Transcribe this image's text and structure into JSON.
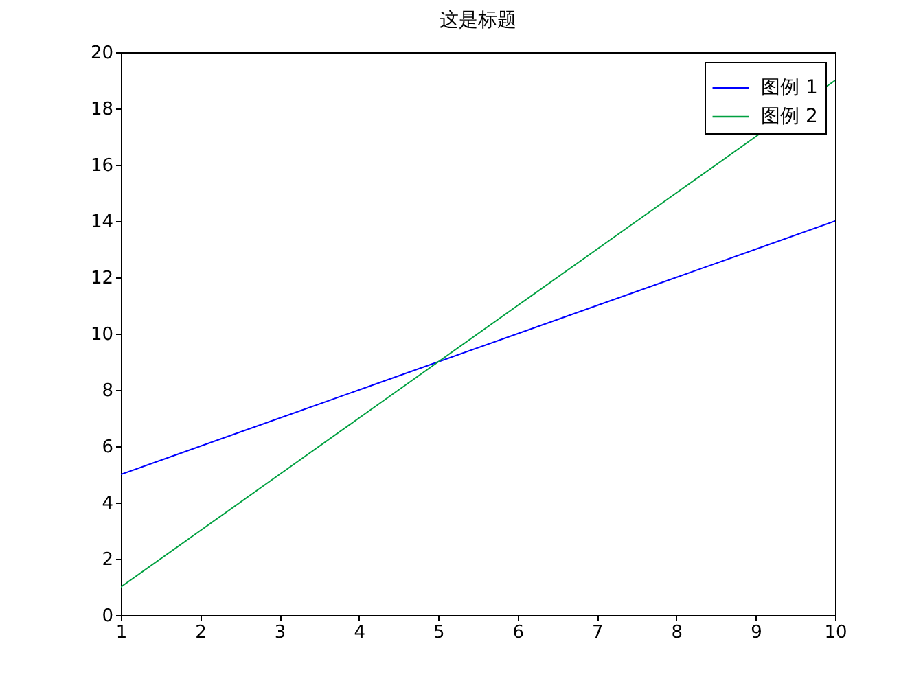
{
  "chart_data": {
    "type": "line",
    "title": "这是标题",
    "x": [
      1,
      2,
      3,
      4,
      5,
      6,
      7,
      8,
      9,
      10
    ],
    "series": [
      {
        "name": "图例 1",
        "color": "#0000ff",
        "values": [
          5,
          6,
          7,
          8,
          9,
          10,
          11,
          12,
          13,
          14
        ]
      },
      {
        "name": "图例 2",
        "color": "#00a040",
        "values": [
          1,
          3,
          5,
          7,
          9,
          11,
          13,
          15,
          17,
          19
        ]
      }
    ],
    "xlim": [
      1,
      10
    ],
    "xticks": [
      1,
      2,
      3,
      4,
      5,
      6,
      7,
      8,
      9,
      10
    ],
    "ylim": [
      0,
      20
    ],
    "yticks": [
      0,
      2,
      4,
      6,
      8,
      10,
      12,
      14,
      16,
      18,
      20
    ],
    "grid": false,
    "legend": "top right",
    "line_style": "solid"
  }
}
